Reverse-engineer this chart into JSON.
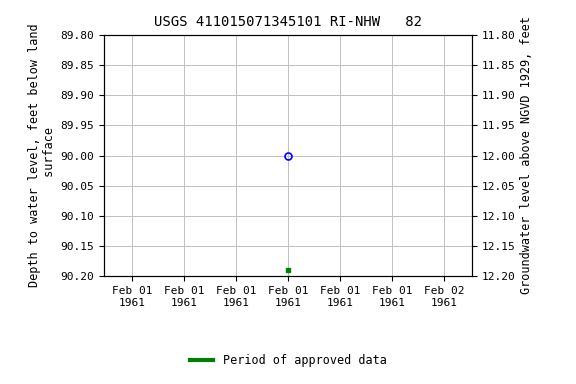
{
  "title": "USGS 411015071345101 RI-NHW   82",
  "ylabel_left": "Depth to water level, feet below land\n surface",
  "ylabel_right": "Groundwater level above NGVD 1929, feet",
  "ylim_left": [
    89.8,
    90.2
  ],
  "ylim_right": [
    12.2,
    11.8
  ],
  "yticks_left": [
    89.8,
    89.85,
    89.9,
    89.95,
    90.0,
    90.05,
    90.1,
    90.15,
    90.2
  ],
  "yticks_right": [
    12.2,
    12.15,
    12.1,
    12.05,
    12.0,
    11.95,
    11.9,
    11.85,
    11.8
  ],
  "circle_point": {
    "depth": 90.0,
    "color": "#0000ff"
  },
  "square_point": {
    "depth": 90.19,
    "color": "#008000"
  },
  "x_tick_labels": [
    "Feb 01\n1961",
    "Feb 01\n1961",
    "Feb 01\n1961",
    "Feb 01\n1961",
    "Feb 01\n1961",
    "Feb 01\n1961",
    "Feb 02\n1961"
  ],
  "legend_label": "Period of approved data",
  "legend_color": "#008000",
  "grid_color": "#c0c0c0",
  "background_color": "#ffffff",
  "title_fontsize": 10,
  "axis_label_fontsize": 8.5,
  "tick_fontsize": 8
}
